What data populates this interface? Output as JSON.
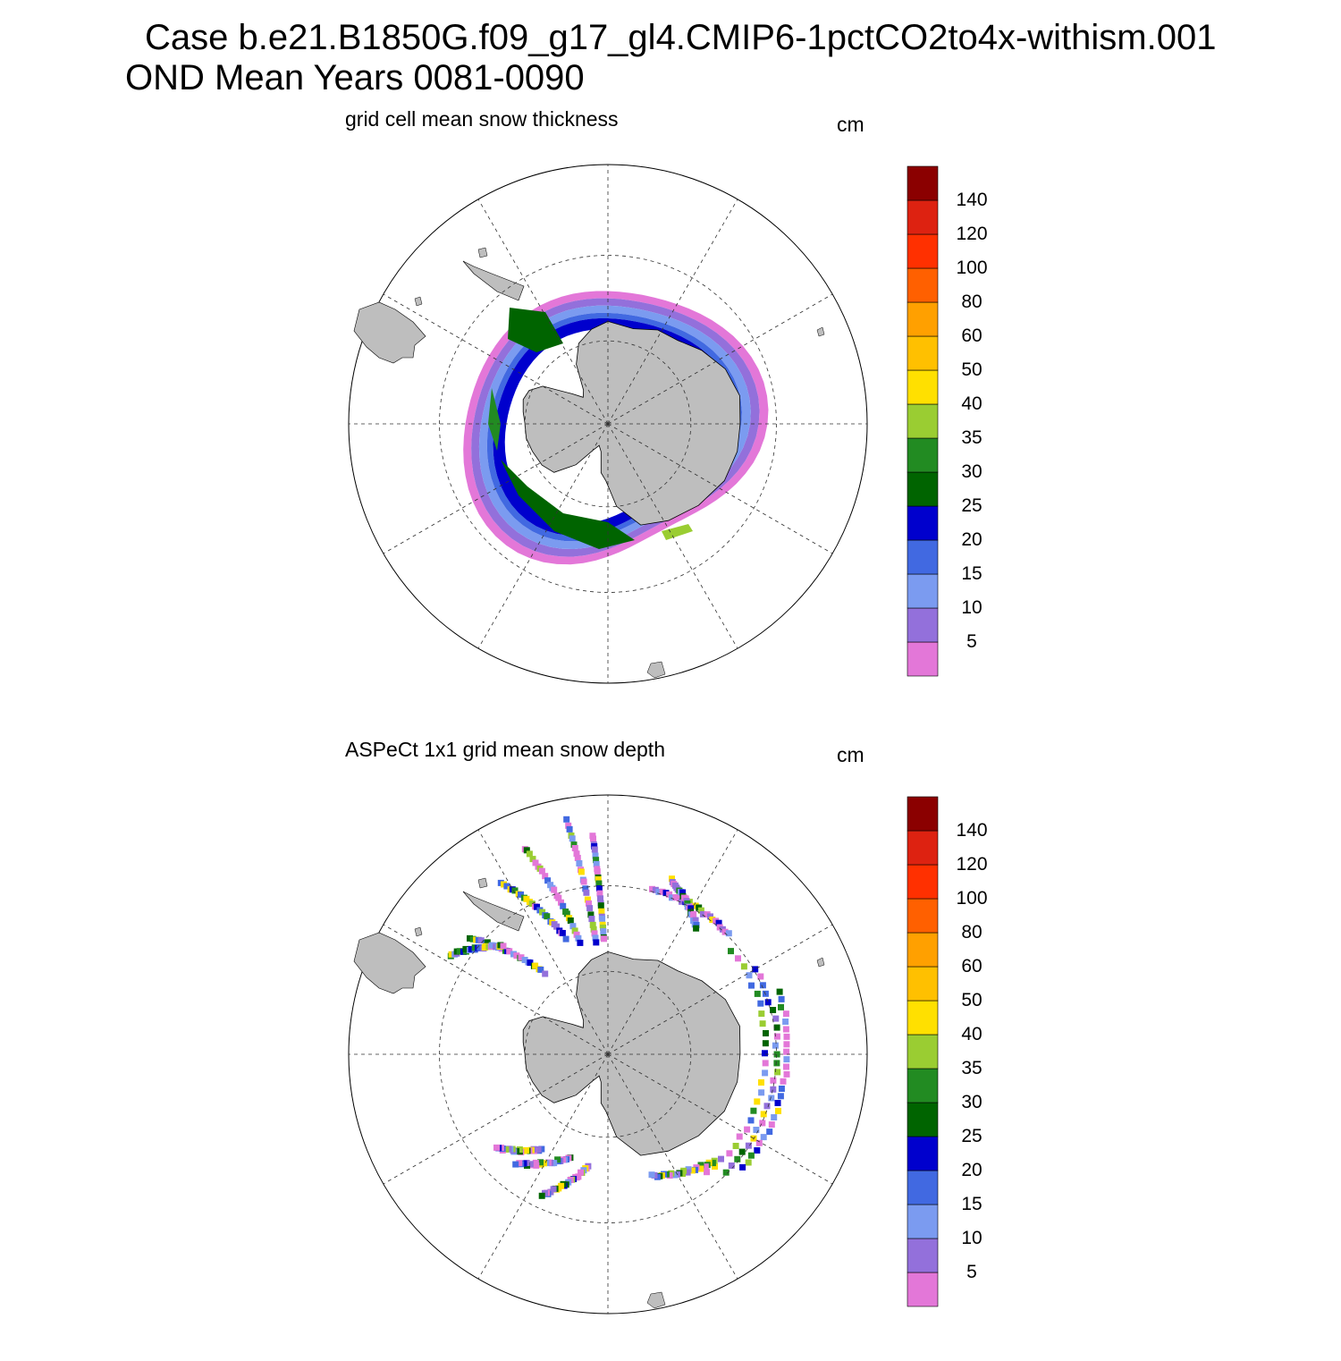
{
  "figure": {
    "title_line1": "Case b.e21.B1850G.f09_g17_gl4.CMIP6-1pctCO2to4x-withism.001",
    "title_line2": "OND Mean   Years 0081-0090"
  },
  "panels": [
    {
      "id": "model",
      "title": "grid cell mean snow thickness",
      "units": "cm",
      "field": "continuous",
      "bands": [
        {
          "level": 5,
          "rin": 0.345,
          "rout": 0.365
        },
        {
          "level": 10,
          "rin": 0.325,
          "rout": 0.345
        },
        {
          "level": 15,
          "rin": 0.305,
          "rout": 0.325
        },
        {
          "level": 20,
          "rin": 0.29,
          "rout": 0.305
        },
        {
          "level": 25,
          "rin": 0.26,
          "rout": 0.29
        }
      ]
    },
    {
      "id": "obs",
      "title": "ASPeCt 1x1 grid mean snow depth",
      "units": "cm",
      "field": "ship-tracks"
    }
  ],
  "colorbar": {
    "labels": [
      "5",
      "10",
      "15",
      "20",
      "25",
      "30",
      "35",
      "40",
      "50",
      "60",
      "80",
      "100",
      "120",
      "140"
    ],
    "colors": [
      "#e377d8",
      "#9370db",
      "#7b9bf0",
      "#4169e1",
      "#0000cd",
      "#006400",
      "#228b22",
      "#9acd32",
      "#ffe000",
      "#ffc000",
      "#ffa000",
      "#ff6000",
      "#ff3000",
      "#dd2211",
      "#8b0000"
    ]
  },
  "map": {
    "projection": "south-polar-stereographic",
    "land_color": "#bebebe",
    "ocean_color": "#ffffff",
    "grid_lines": "dashed"
  }
}
